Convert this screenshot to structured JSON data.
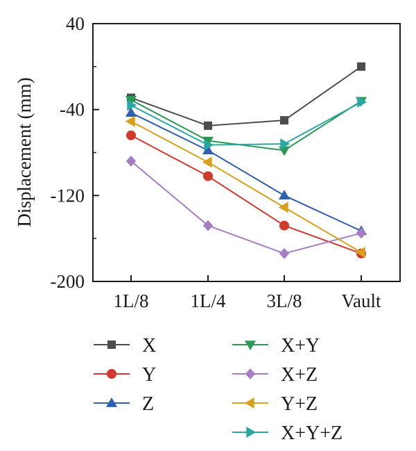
{
  "chart_data": {
    "type": "line",
    "title": "",
    "xlabel": "",
    "ylabel": "Displacement (mm)",
    "categories": [
      "1L/8",
      "1L/4",
      "3L/8",
      "Vault"
    ],
    "ylim": [
      -200,
      40
    ],
    "yticks": [
      40,
      -40,
      -120,
      -200
    ],
    "yticklabels": [
      "40",
      "-40",
      "-120",
      "-200"
    ],
    "grid": false,
    "legend_position": "bottom",
    "series": [
      {
        "name": "X",
        "color": "#4d4d4d",
        "marker": "square",
        "values": [
          -29,
          -55,
          -50,
          0
        ]
      },
      {
        "name": "Y",
        "color": "#d03a2a",
        "marker": "circle",
        "values": [
          -64,
          -102,
          -148,
          -174
        ]
      },
      {
        "name": "Z",
        "color": "#2f5fb0",
        "marker": "triangle-up",
        "values": [
          -43,
          -78,
          -120,
          -153
        ]
      },
      {
        "name": "X+Y",
        "color": "#2a9a55",
        "marker": "triangle-down",
        "values": [
          -31,
          -69,
          -78,
          -32
        ]
      },
      {
        "name": "X+Z",
        "color": "#a57cc6",
        "marker": "diamond",
        "values": [
          -88,
          -148,
          -174,
          -155
        ]
      },
      {
        "name": "Y+Z",
        "color": "#d9a01c",
        "marker": "triangle-left",
        "values": [
          -51,
          -89,
          -131,
          -173
        ]
      },
      {
        "name": "X+Y+Z",
        "color": "#2aa7a3",
        "marker": "triangle-right",
        "values": [
          -36,
          -73,
          -72,
          -33
        ]
      }
    ]
  }
}
